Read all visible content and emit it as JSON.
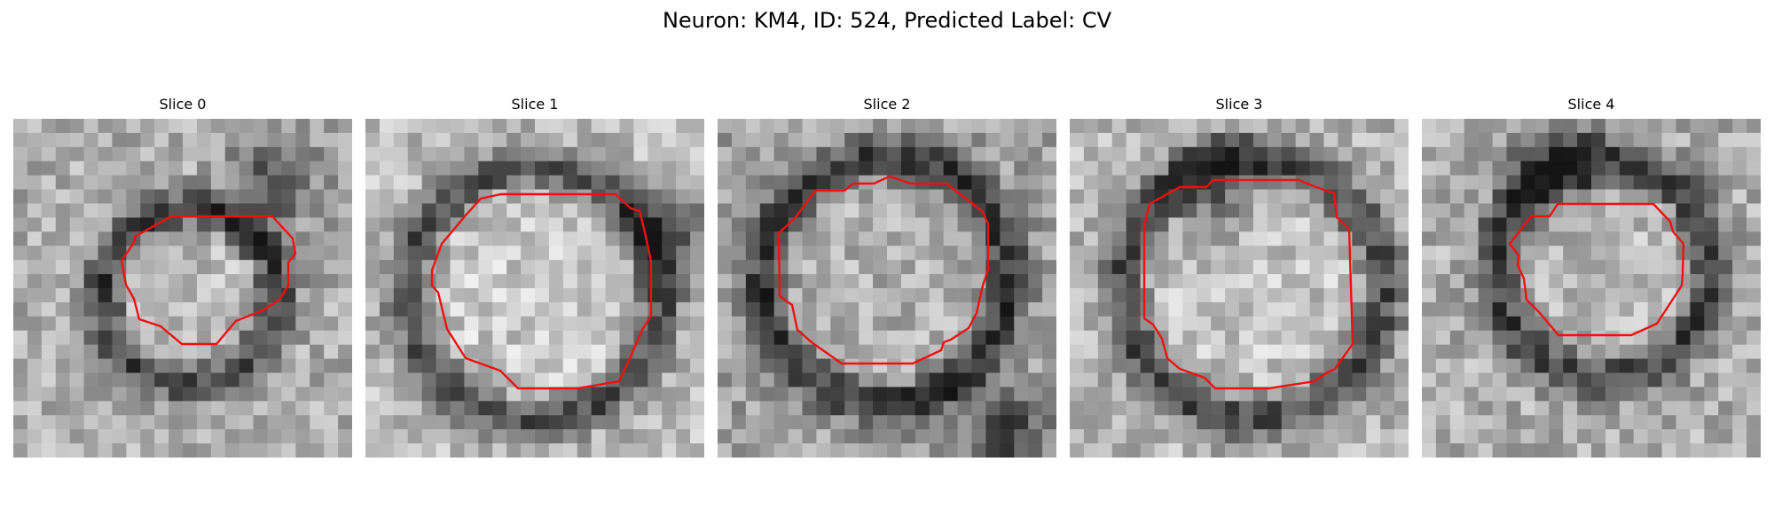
{
  "figure": {
    "title": "Neuron: KM4, ID: 524, Predicted Label: CV",
    "contour_color": "#ee1111"
  },
  "slices": [
    {
      "title": "Slice 0"
    },
    {
      "title": "Slice 1"
    },
    {
      "title": "Slice 2"
    },
    {
      "title": "Slice 3"
    },
    {
      "title": "Slice 4"
    }
  ]
}
